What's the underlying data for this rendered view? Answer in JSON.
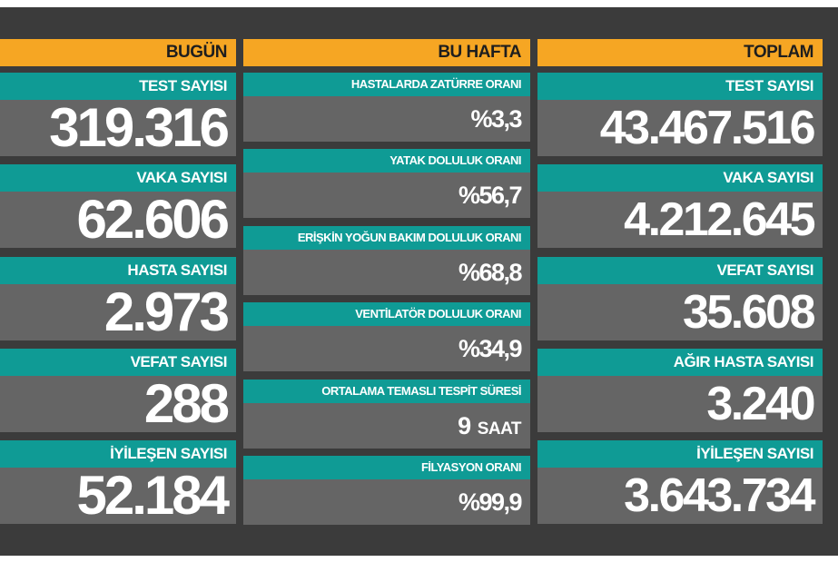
{
  "columns": [
    {
      "title": "BUGÜN",
      "items": [
        {
          "label": "TEST SAYISI",
          "value": "319.316"
        },
        {
          "label": "VAKA SAYISI",
          "value": "62.606"
        },
        {
          "label": "HASTA SAYISI",
          "value": "2.973"
        },
        {
          "label": "VEFAT SAYISI",
          "value": "288"
        },
        {
          "label": "İYİLEŞEN SAYISI",
          "value": "52.184"
        }
      ]
    },
    {
      "title": "BU HAFTA",
      "items": [
        {
          "label": "HASTALARDA ZATÜRRE ORANI",
          "value": "%3,3"
        },
        {
          "label": "YATAK DOLULUK ORANI",
          "value": "%56,7"
        },
        {
          "label": "ERİŞKİN YOĞUN BAKIM DOLULUK ORANI",
          "value": "%68,8"
        },
        {
          "label": "VENTİLATÖR DOLULUK ORANI",
          "value": "%34,9"
        },
        {
          "label": "ORTALAMA TEMASLI TESPİT SÜRESİ",
          "value": "9",
          "unit": "SAAT"
        },
        {
          "label": "FİLYASYON ORANI",
          "value": "%99,9"
        }
      ]
    },
    {
      "title": "TOPLAM",
      "items": [
        {
          "label": "TEST SAYISI",
          "value": "43.467.516"
        },
        {
          "label": "VAKA SAYISI",
          "value": "4.212.645"
        },
        {
          "label": "VEFAT SAYISI",
          "value": "35.608"
        },
        {
          "label": "AĞIR HASTA SAYISI",
          "value": "3.240"
        },
        {
          "label": "İYİLEŞEN SAYISI",
          "value": "3.643.734"
        }
      ]
    }
  ]
}
